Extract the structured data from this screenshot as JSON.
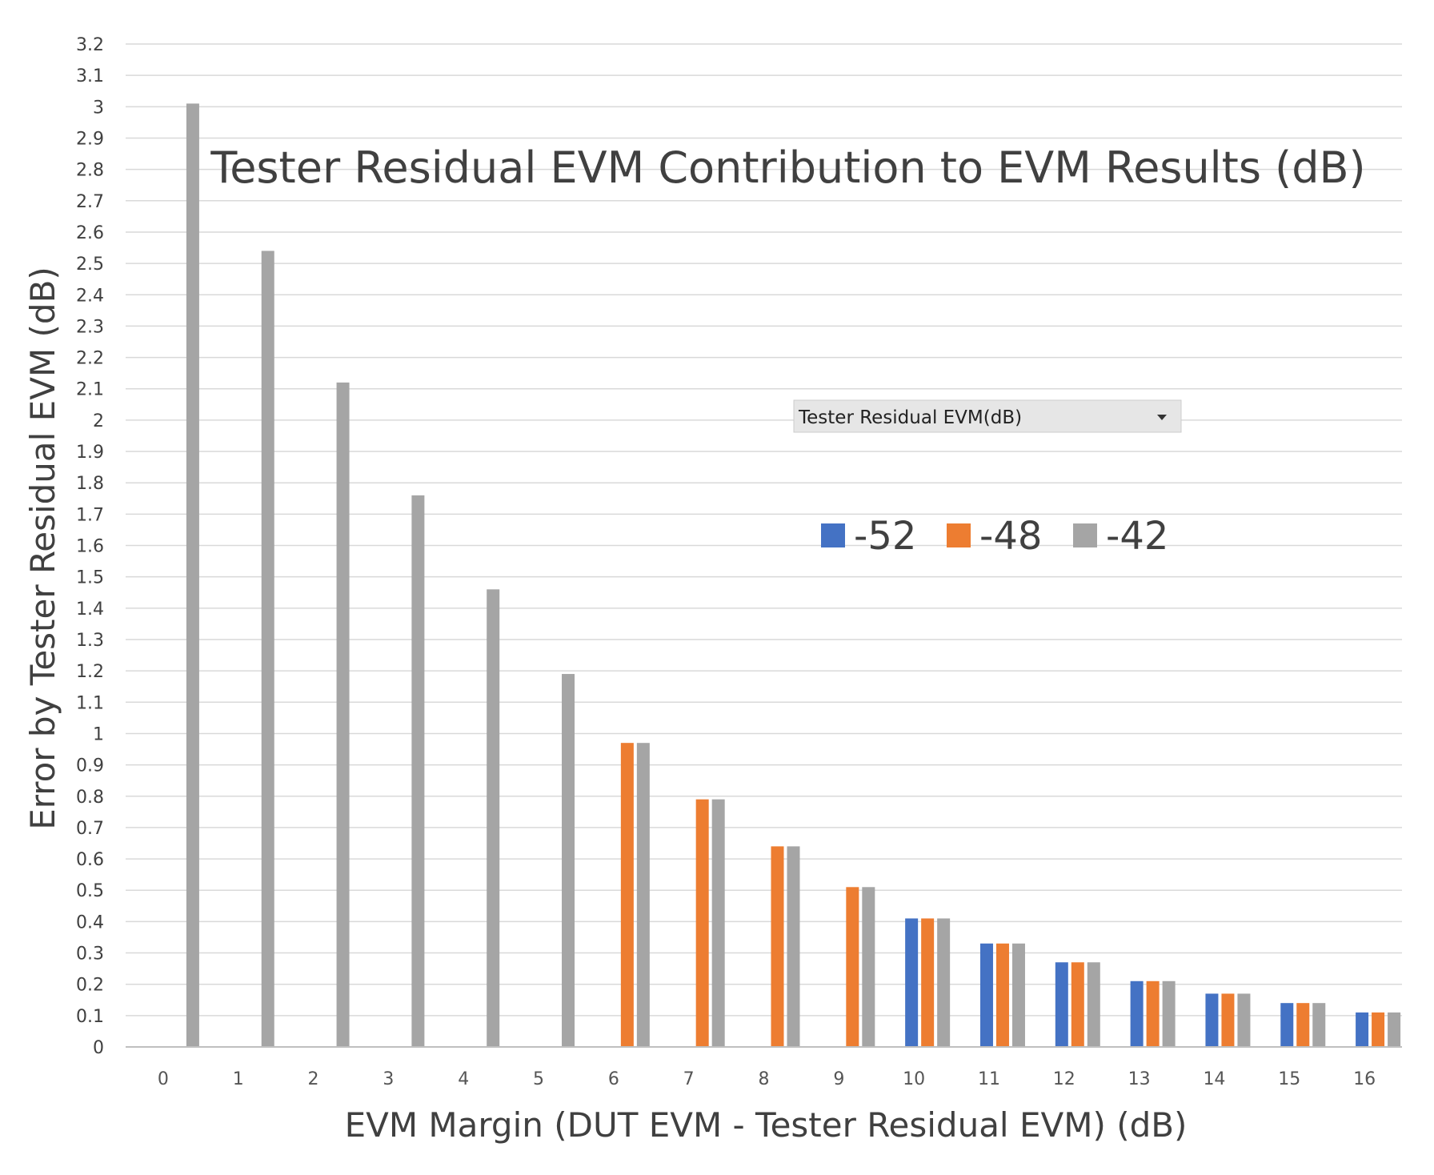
{
  "chart_data": {
    "type": "bar",
    "title": "Tester Residual EVM Contribution to EVM Results (dB)",
    "xlabel": "EVM Margin (DUT EVM - Tester Residual EVM) (dB)",
    "ylabel": "Error by Tester Residual EVM (dB)",
    "ylim": [
      0,
      3.2
    ],
    "y_ticks": [
      "0",
      "0.1",
      "0.2",
      "0.3",
      "0.4",
      "0.5",
      "0.6",
      "0.7",
      "0.8",
      "0.9",
      "1",
      "1.1",
      "1.2",
      "1.3",
      "1.4",
      "1.5",
      "1.6",
      "1.7",
      "1.8",
      "1.9",
      "2",
      "2.1",
      "2.2",
      "2.3",
      "2.4",
      "2.5",
      "2.6",
      "2.7",
      "2.8",
      "2.9",
      "3",
      "3.1",
      "3.2"
    ],
    "categories": [
      "0",
      "1",
      "2",
      "3",
      "4",
      "5",
      "6",
      "7",
      "8",
      "9",
      "10",
      "11",
      "12",
      "13",
      "14",
      "15",
      "16"
    ],
    "grid": true,
    "legend_position": "center-right",
    "series": [
      {
        "name": "-52",
        "color": "#4472C4",
        "values": [
          null,
          null,
          null,
          null,
          null,
          null,
          null,
          null,
          null,
          null,
          0.41,
          0.33,
          0.27,
          0.21,
          0.17,
          0.14,
          0.11
        ]
      },
      {
        "name": "-48",
        "color": "#ED7D31",
        "values": [
          null,
          null,
          null,
          null,
          null,
          null,
          0.97,
          0.79,
          0.64,
          0.51,
          0.41,
          0.33,
          0.27,
          0.21,
          0.17,
          0.14,
          0.11
        ]
      },
      {
        "name": "-42",
        "color": "#A5A5A5",
        "values": [
          3.01,
          2.54,
          2.12,
          1.76,
          1.46,
          1.19,
          0.97,
          0.79,
          0.64,
          0.51,
          0.41,
          0.33,
          0.27,
          0.21,
          0.17,
          0.14,
          0.11
        ]
      }
    ]
  },
  "field_dropdown": {
    "label": "Tester Residual EVM(dB)",
    "arrow_icon": "dropdown-arrow-icon"
  },
  "colors": {
    "gridline": "#D9D9D9",
    "axis": "#BFBFBF"
  }
}
